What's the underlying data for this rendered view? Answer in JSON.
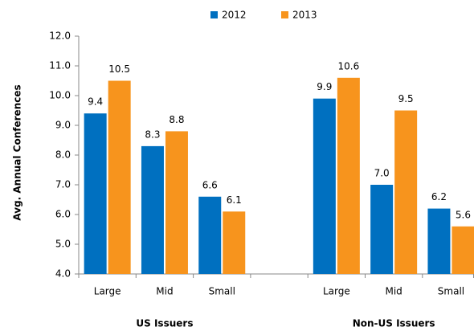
{
  "chart_data": {
    "type": "bar",
    "y_label": "Avg. Annual Conferences",
    "categories": [
      "Large",
      "Mid",
      "Small",
      null,
      "Large",
      "Mid",
      "Small"
    ],
    "groups": [
      "US Issuers",
      "Non-US Issuers"
    ],
    "series": [
      {
        "name": "2012",
        "color": "#0070c0",
        "values": [
          9.4,
          8.3,
          6.6,
          null,
          9.9,
          7.0,
          6.2
        ],
        "value_labels": [
          "9.4",
          "8.3",
          "6.6",
          null,
          "9.9",
          "7.0",
          "6.2"
        ]
      },
      {
        "name": "2013",
        "color": "#f7941d",
        "values": [
          10.5,
          8.8,
          6.1,
          null,
          10.6,
          9.5,
          5.6
        ],
        "value_labels": [
          "10.5",
          "8.8",
          "6.1",
          null,
          "10.6",
          "9.5",
          "5.6"
        ]
      }
    ],
    "ylim": [
      4,
      12
    ],
    "yticks": [
      {
        "value": 4,
        "label": "4.0"
      },
      {
        "value": 5,
        "label": "5.0"
      },
      {
        "value": 6,
        "label": "6.0"
      },
      {
        "value": 7,
        "label": "7.0"
      },
      {
        "value": 8,
        "label": "8.0"
      },
      {
        "value": 9,
        "label": "9.0"
      },
      {
        "value": 10,
        "label": "10.0"
      },
      {
        "value": 11,
        "label": "11.0"
      },
      {
        "value": 12,
        "label": "12.0"
      }
    ],
    "legend": "top"
  }
}
